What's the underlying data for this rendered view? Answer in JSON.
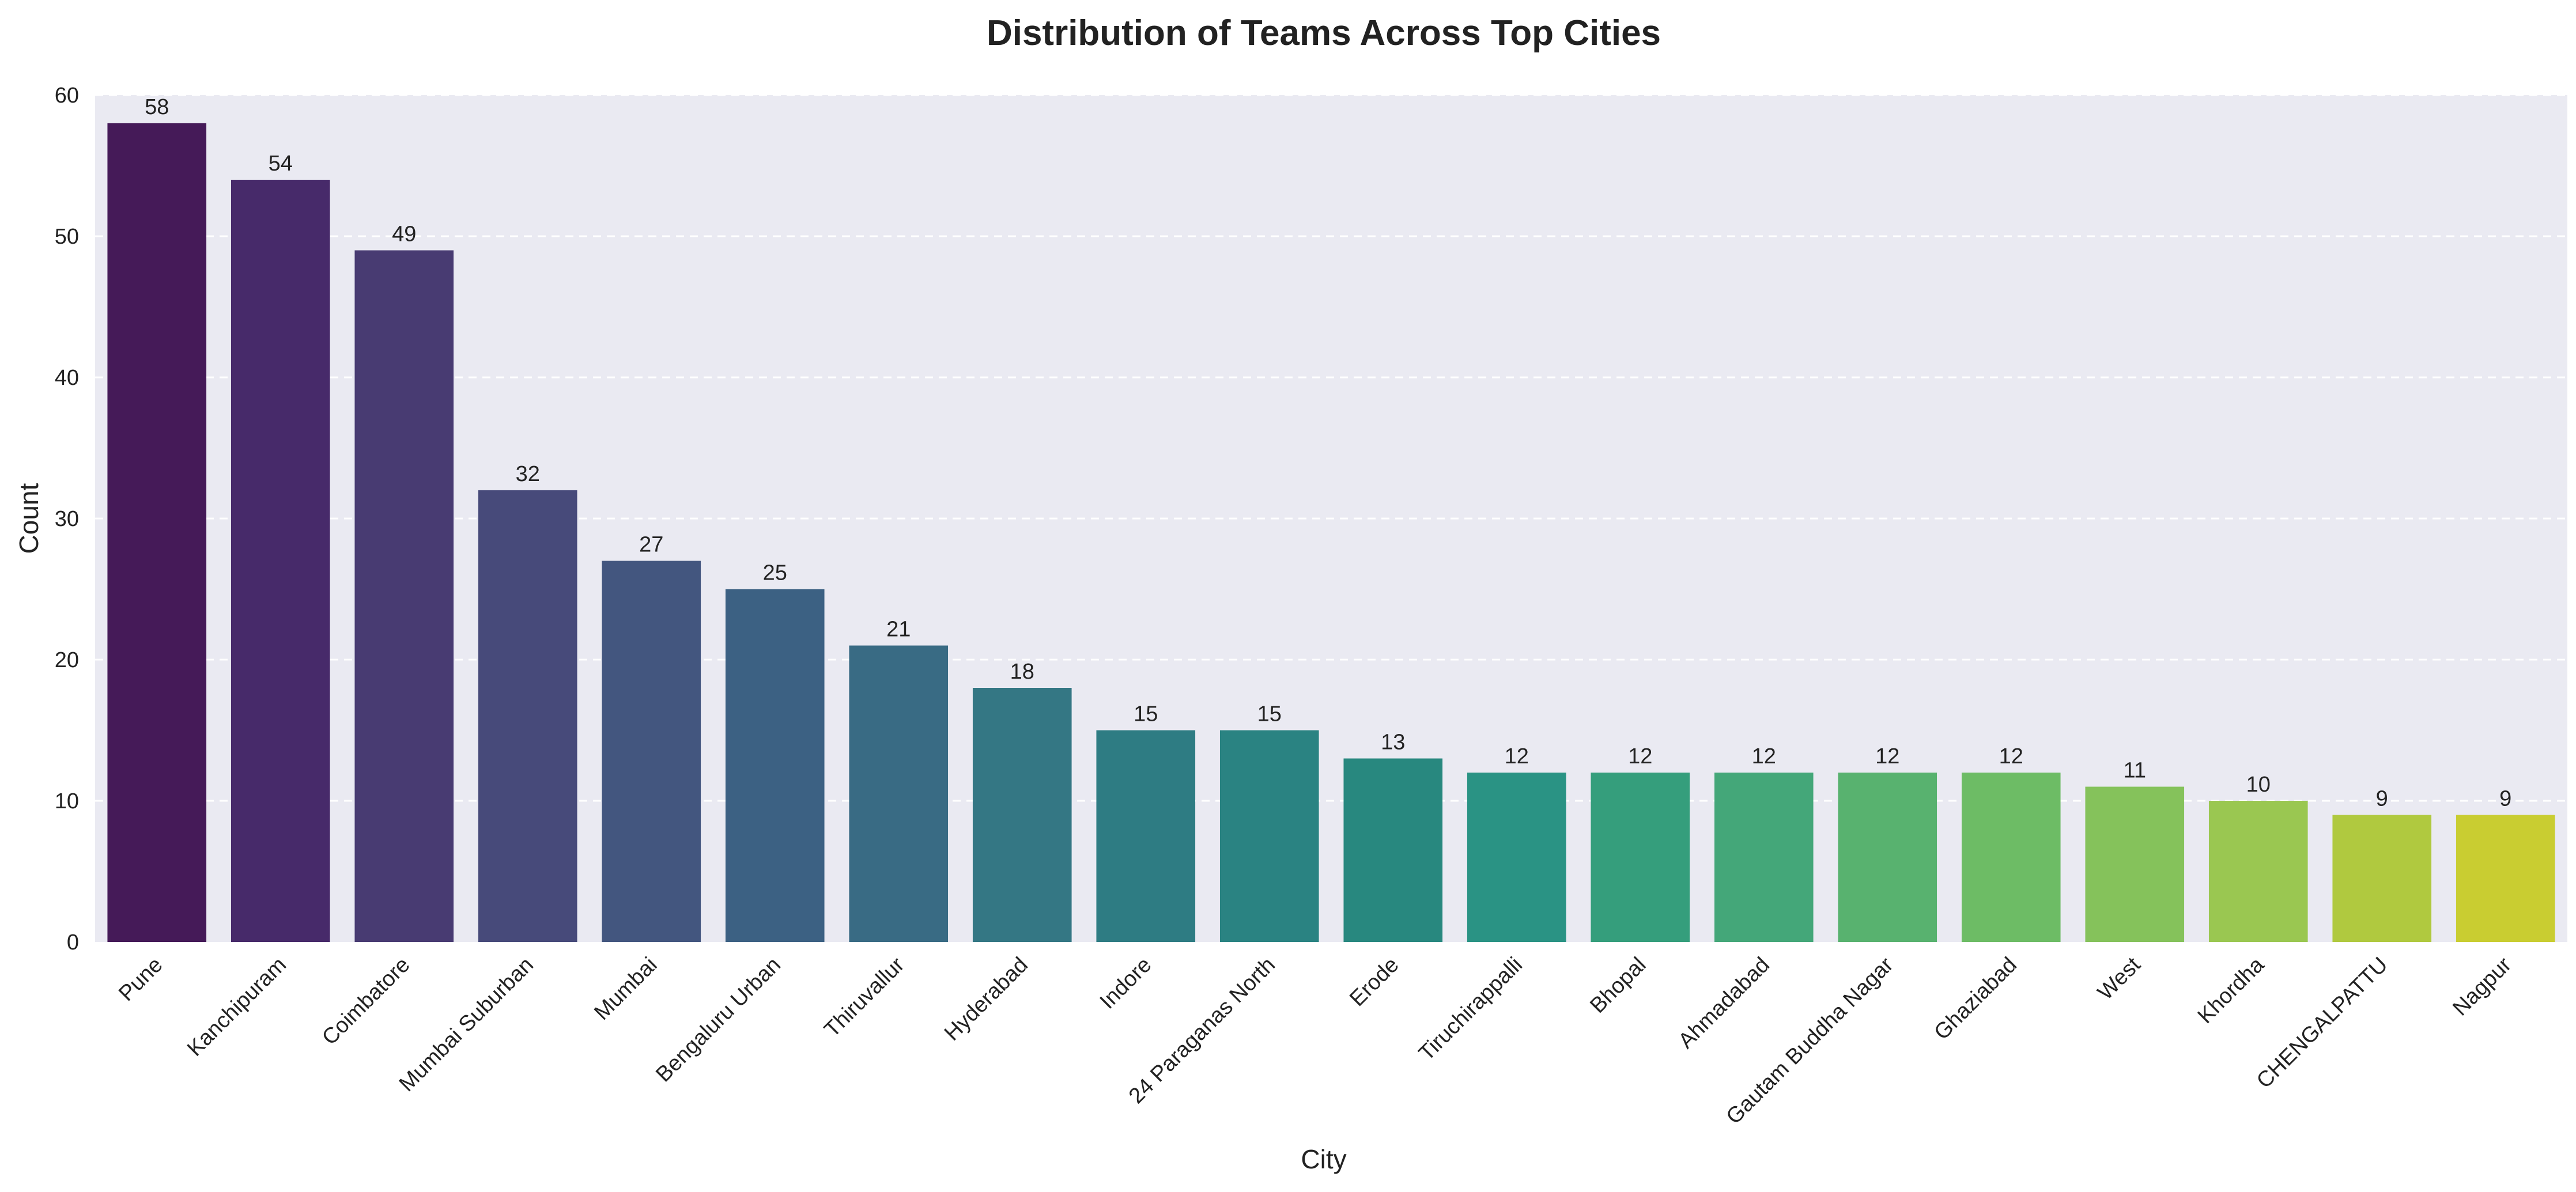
{
  "chart_data": {
    "type": "bar",
    "title": "Distribution of Teams Across Top Cities",
    "xlabel": "City",
    "ylabel": "Count",
    "ylim": [
      0,
      60
    ],
    "yticks": [
      0,
      10,
      20,
      30,
      40,
      50,
      60
    ],
    "grid": true,
    "categories": [
      "Pune",
      "Kanchipuram",
      "Coimbatore",
      "Mumbai Suburban",
      "Mumbai",
      "Bengaluru Urban",
      "Thiruvallur",
      "Hyderabad",
      "Indore",
      "24 Paraganas North",
      "Erode",
      "Tiruchirappalli",
      "Bhopal",
      "Ahmadabad",
      "Gautam Buddha Nagar",
      "Ghaziabad",
      "West",
      "Khordha",
      "CHENGALPATTU",
      "Nagpur"
    ],
    "values": [
      58,
      54,
      49,
      32,
      27,
      25,
      21,
      18,
      15,
      15,
      13,
      12,
      12,
      12,
      12,
      12,
      11,
      10,
      9,
      9
    ],
    "colors": [
      "#451a58",
      "#472a6a",
      "#483b72",
      "#474a7a",
      "#43567f",
      "#3c6183",
      "#396b84",
      "#347784",
      "#2e7c83",
      "#2a8382",
      "#28887f",
      "#2a9384",
      "#359e7c",
      "#44a779",
      "#58b26f",
      "#6dbc65",
      "#85c25b",
      "#9ac751",
      "#b0c93f",
      "#c9cd31"
    ],
    "background": "#eaeaf2",
    "grid_color": "#ffffff"
  }
}
